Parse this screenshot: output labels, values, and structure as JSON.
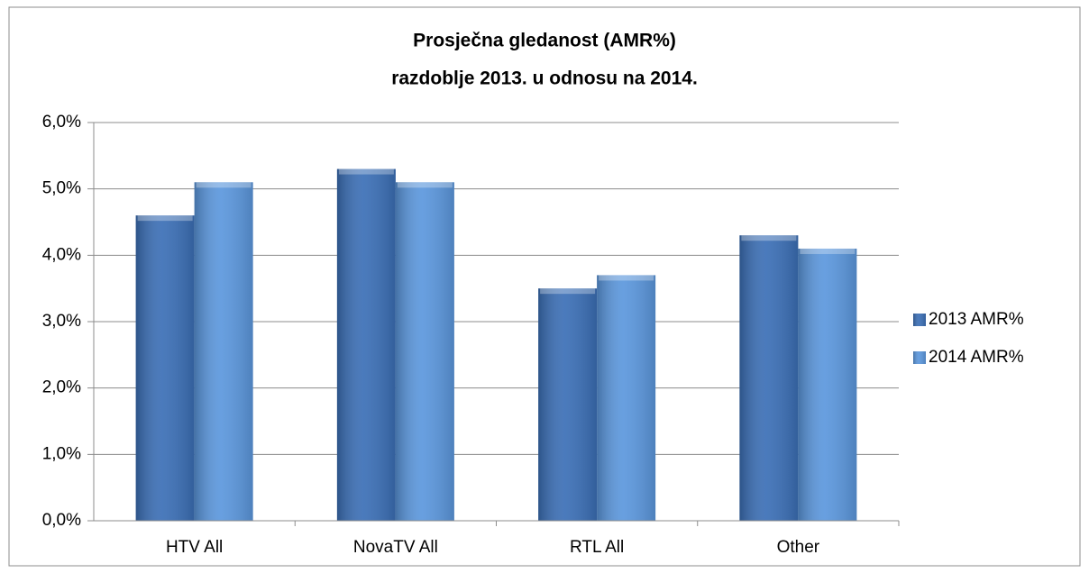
{
  "chart_data": {
    "type": "bar",
    "title": "Prosječna gledanost (AMR%)",
    "subtitle": "razdoblje 2013. u odnosu na 2014.",
    "categories": [
      "HTV All",
      "NovaTV All",
      "RTL All",
      "Other"
    ],
    "series": [
      {
        "name": "2013 AMR%",
        "color": "#3b6fb6",
        "values": [
          4.6,
          5.3,
          3.5,
          4.3
        ]
      },
      {
        "name": "2014 AMR%",
        "color": "#5b97dd",
        "values": [
          5.1,
          5.1,
          3.7,
          4.1
        ]
      }
    ],
    "ylim": [
      0,
      6
    ],
    "yticks": [
      {
        "value": 0,
        "label": "0,0%"
      },
      {
        "value": 1,
        "label": "1,0%"
      },
      {
        "value": 2,
        "label": "2,0%"
      },
      {
        "value": 3,
        "label": "3,0%"
      },
      {
        "value": 4,
        "label": "4,0%"
      },
      {
        "value": 5,
        "label": "5,0%"
      },
      {
        "value": 6,
        "label": "6,0%"
      }
    ],
    "grid": true,
    "legend": "right"
  }
}
